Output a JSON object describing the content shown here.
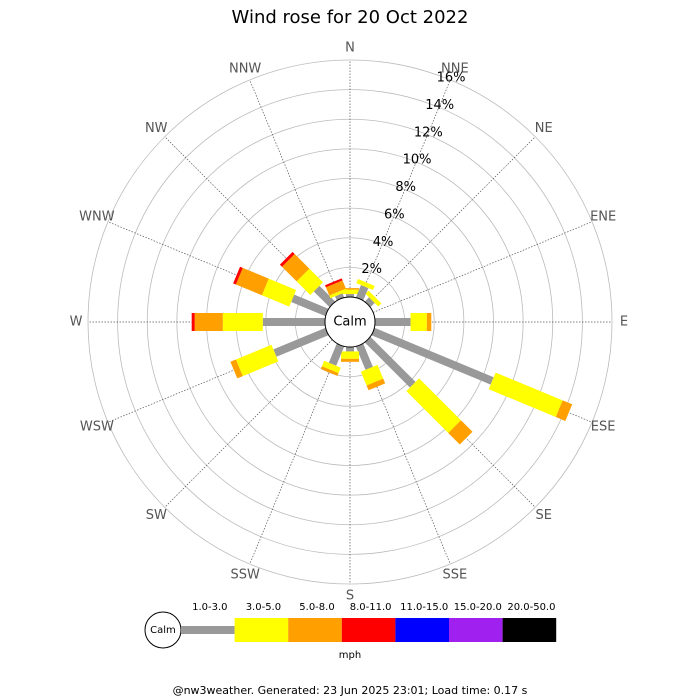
{
  "chart_data": {
    "type": "windrose",
    "title": "Wind rose for 20 Oct 2022",
    "directions": [
      "N",
      "NNE",
      "NE",
      "ENE",
      "E",
      "ESE",
      "SE",
      "SSE",
      "S",
      "SSW",
      "SW",
      "WSW",
      "W",
      "WNW",
      "NW",
      "NNW"
    ],
    "calm_label": "Calm",
    "rlim": [
      0,
      16
    ],
    "rticks": [
      {
        "value": 2,
        "label": "2%"
      },
      {
        "value": 4,
        "label": "4%"
      },
      {
        "value": 6,
        "label": "6%"
      },
      {
        "value": 8,
        "label": "8%"
      },
      {
        "value": 10,
        "label": "10%"
      },
      {
        "value": 12,
        "label": "12%"
      },
      {
        "value": 14,
        "label": "14%"
      },
      {
        "value": 16,
        "label": "16%"
      }
    ],
    "series": [
      {
        "name": "1.0-3.0",
        "color": "#999999",
        "values": [
          0.2,
          0.9,
          0.4,
          0,
          2.4,
          8.7,
          4.3,
          1.7,
          0.3,
          1.4,
          0,
          3.8,
          4.2,
          2.5,
          1.5,
          0.3
        ]
      },
      {
        "name": "3.0-5.0",
        "color": "#ffff00",
        "values": [
          0.3,
          0.3,
          0.3,
          0,
          1.1,
          4.9,
          4.0,
          1.0,
          0.5,
          0.4,
          0,
          2.6,
          2.7,
          2.0,
          1.3,
          0.2
        ]
      },
      {
        "name": "5.0-8.0",
        "color": "#ffa000",
        "values": [
          0.1,
          0,
          0,
          0,
          0.3,
          0.7,
          1.1,
          0.35,
          0.2,
          0.2,
          0,
          0.4,
          1.9,
          1.9,
          1.4,
          0.6
        ]
      },
      {
        "name": "8.0-11.0",
        "color": "#ff0000",
        "values": [
          0,
          0,
          0,
          0,
          0,
          0,
          0,
          0,
          0,
          0,
          0,
          0,
          0.2,
          0.2,
          0.2,
          0.15
        ]
      },
      {
        "name": "11.0-15.0",
        "color": "#0000ff",
        "values": [
          0,
          0,
          0,
          0,
          0,
          0,
          0,
          0,
          0,
          0,
          0,
          0,
          0,
          0,
          0,
          0
        ]
      },
      {
        "name": "15.0-20.0",
        "color": "#a020f0",
        "values": [
          0,
          0,
          0,
          0,
          0,
          0,
          0,
          0,
          0,
          0,
          0,
          0,
          0,
          0,
          0,
          0
        ]
      },
      {
        "name": "20.0-50.0",
        "color": "#000000",
        "values": [
          0,
          0,
          0,
          0,
          0,
          0,
          0,
          0,
          0,
          0,
          0,
          0,
          0,
          0,
          0,
          0
        ]
      }
    ],
    "legend_unit": "mph",
    "footer": "@nw3weather. Generated: 23 Jun 2025 23:01; Load time: 0.17 s"
  }
}
